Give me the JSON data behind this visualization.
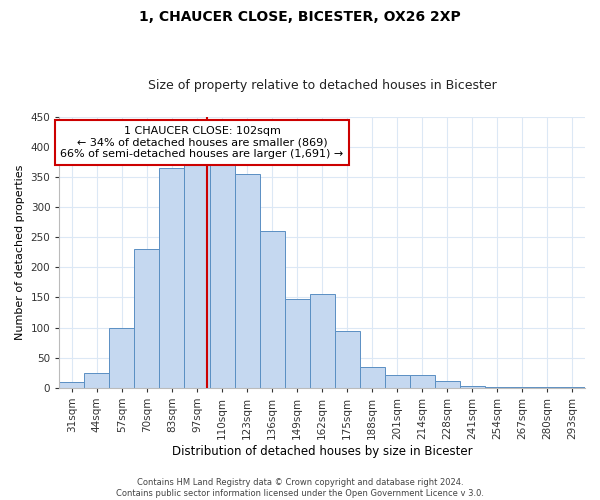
{
  "title": "1, CHAUCER CLOSE, BICESTER, OX26 2XP",
  "subtitle": "Size of property relative to detached houses in Bicester",
  "xlabel": "Distribution of detached houses by size in Bicester",
  "ylabel": "Number of detached properties",
  "bar_labels": [
    "31sqm",
    "44sqm",
    "57sqm",
    "70sqm",
    "83sqm",
    "97sqm",
    "110sqm",
    "123sqm",
    "136sqm",
    "149sqm",
    "162sqm",
    "175sqm",
    "188sqm",
    "201sqm",
    "214sqm",
    "228sqm",
    "241sqm",
    "254sqm",
    "267sqm",
    "280sqm",
    "293sqm"
  ],
  "bar_values": [
    10,
    25,
    100,
    230,
    365,
    370,
    375,
    355,
    260,
    147,
    155,
    95,
    35,
    21,
    21,
    11,
    3,
    2,
    2,
    1,
    1
  ],
  "bar_color": "#c5d8f0",
  "bar_edge_color": "#5a8fc3",
  "property_line_label": "1 CHAUCER CLOSE: 102sqm",
  "annotation_line1": "← 34% of detached houses are smaller (869)",
  "annotation_line2": "66% of semi-detached houses are larger (1,691) →",
  "annotation_box_color": "#ffffff",
  "annotation_box_edge": "#cc0000",
  "property_line_color": "#cc0000",
  "ylim": [
    0,
    450
  ],
  "yticks": [
    0,
    50,
    100,
    150,
    200,
    250,
    300,
    350,
    400,
    450
  ],
  "footer_line1": "Contains HM Land Registry data © Crown copyright and database right 2024.",
  "footer_line2": "Contains public sector information licensed under the Open Government Licence v 3.0.",
  "background_color": "#ffffff",
  "grid_color": "#dce8f5",
  "title_fontsize": 10,
  "subtitle_fontsize": 9,
  "ylabel_fontsize": 8,
  "xlabel_fontsize": 8.5,
  "tick_fontsize": 7.5,
  "annotation_fontsize": 8,
  "footer_fontsize": 6
}
